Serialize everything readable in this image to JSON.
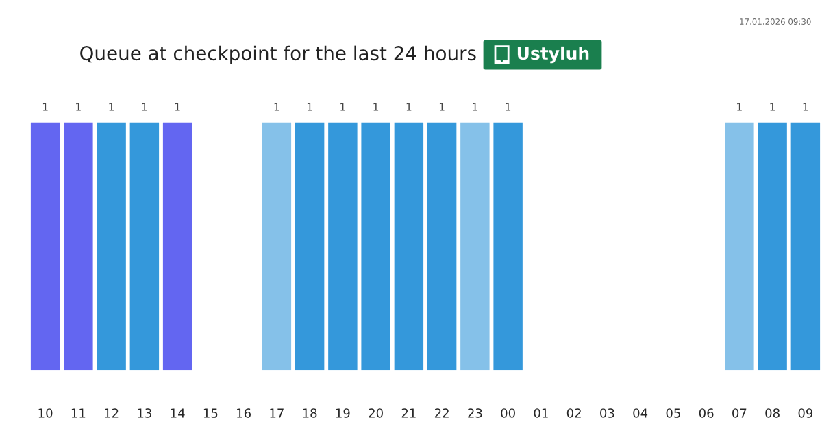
{
  "chart_data": {
    "type": "bar",
    "title": "Queue at checkpoint for the last 24 hours",
    "subtitle": "Ustyluh",
    "categories": [
      "10",
      "11",
      "12",
      "13",
      "14",
      "15",
      "16",
      "17",
      "18",
      "19",
      "20",
      "21",
      "22",
      "23",
      "00",
      "01",
      "02",
      "03",
      "04",
      "05",
      "06",
      "07",
      "08",
      "09"
    ],
    "values": [
      1,
      1,
      1,
      1,
      1,
      null,
      null,
      1,
      1,
      1,
      1,
      1,
      1,
      1,
      1,
      null,
      null,
      null,
      null,
      null,
      null,
      1,
      1,
      1
    ],
    "colors": [
      "#6366f1",
      "#6366f1",
      "#3498db",
      "#3498db",
      "#6366f1",
      null,
      null,
      "#85c1e9",
      "#3498db",
      "#3498db",
      "#3498db",
      "#3498db",
      "#3498db",
      "#85c1e9",
      "#3498db",
      null,
      null,
      null,
      null,
      null,
      null,
      "#85c1e9",
      "#3498db",
      "#3498db"
    ],
    "data_labels": true,
    "tick_labels": "x",
    "grid": false,
    "legend": false,
    "annotations": [
      "17.01.2026 09:30"
    ]
  }
}
